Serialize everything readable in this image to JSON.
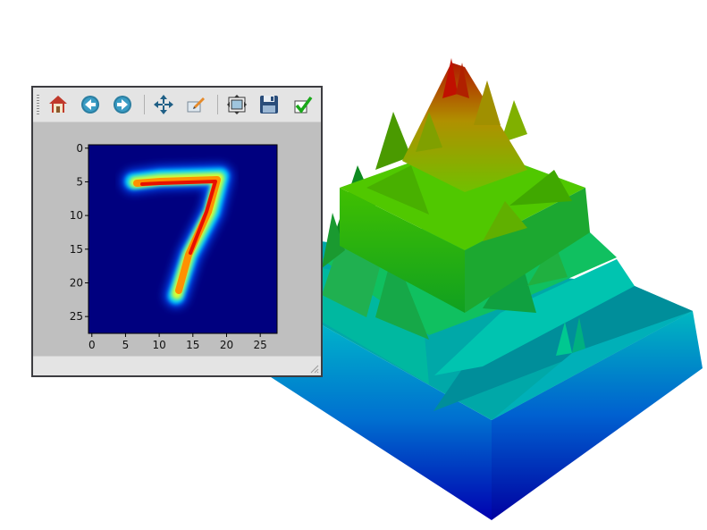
{
  "toolbar": {
    "buttons": [
      {
        "name": "home-button",
        "icon": "home-icon"
      },
      {
        "name": "back-button",
        "icon": "back-arrow-icon"
      },
      {
        "name": "forward-button",
        "icon": "forward-arrow-icon"
      },
      {
        "name": "pan-button",
        "icon": "move-arrows-icon"
      },
      {
        "name": "zoom-button",
        "icon": "zoom-rect-icon"
      },
      {
        "name": "configure-subplots-button",
        "icon": "subplots-icon"
      },
      {
        "name": "save-button",
        "icon": "floppy-disk-icon"
      },
      {
        "name": "edit-parameters-button",
        "icon": "checkmark-icon"
      }
    ]
  },
  "image_plot": {
    "x_ticks": [
      "0",
      "5",
      "10",
      "15",
      "20",
      "25"
    ],
    "y_ticks": [
      "0",
      "5",
      "10",
      "15",
      "20",
      "25"
    ],
    "x_range": [
      0,
      27
    ],
    "y_range": [
      0,
      27
    ],
    "colormap": "jet",
    "background_color": "#00007f"
  },
  "status": {
    "message": ""
  }
}
